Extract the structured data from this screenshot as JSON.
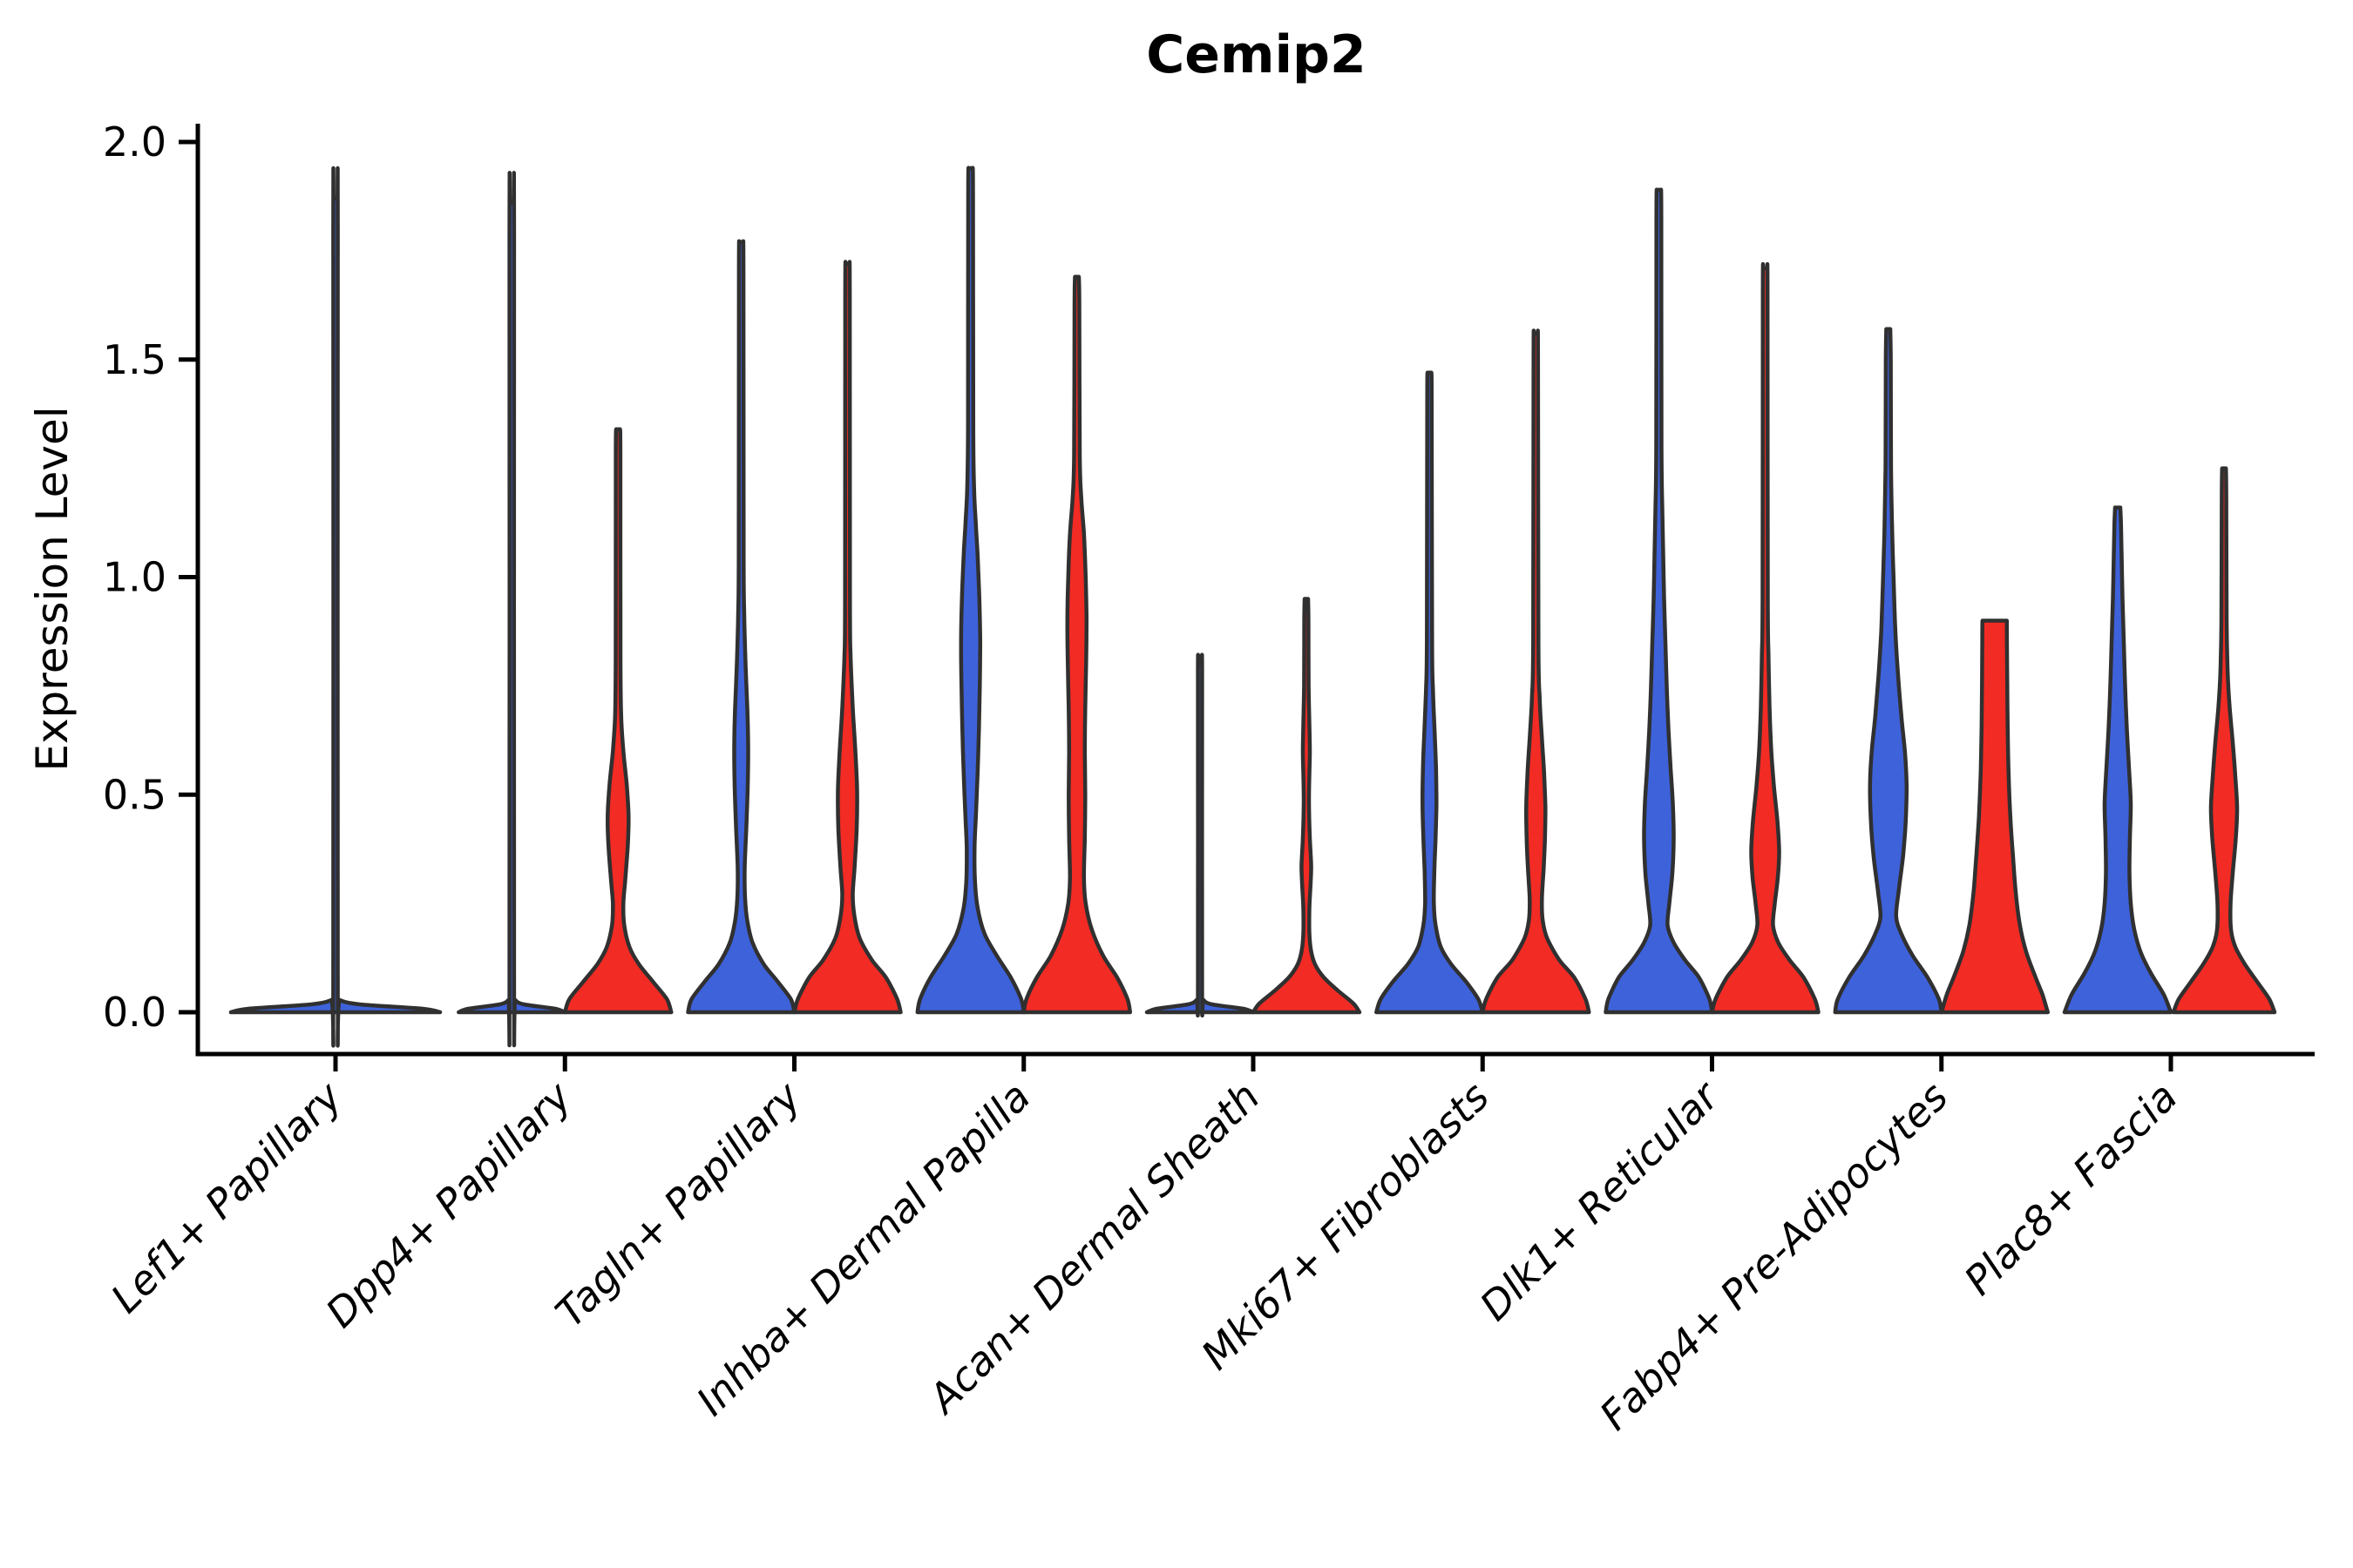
{
  "chart_data": {
    "type": "violin",
    "title": "Cemip2",
    "ylabel": "Expression Level",
    "xlabel": "",
    "ylim": [
      0,
      2.05
    ],
    "grid": false,
    "legend": "none",
    "yticks": [
      "0.0",
      "0.5",
      "1.0",
      "1.5",
      "2.0"
    ],
    "ytick_values": [
      0,
      0.5,
      1.0,
      1.5,
      2.0
    ],
    "categories": [
      "Lef1+ Papillary",
      "Dpp4+ Papillary",
      "Tagln+ Papillary",
      "Inhba+ Dermal Papilla",
      "Acan+ Dermal Sheath",
      "Mki67+ Fibroblasts",
      "Dlk1+ Reticular",
      "Fabp4+ Pre-Adipocytes",
      "Plac8+ Fascia"
    ],
    "colors": {
      "blue_series": "#3E62DA",
      "red_series": "#F22B24",
      "edge": "#303030",
      "axis": "#000000"
    },
    "violins": [
      {
        "category": 0,
        "position": "center",
        "series": "blue",
        "peak_value": 1.87,
        "truncated": false,
        "profile": [
          [
            0,
            120
          ],
          [
            0.008,
            100
          ],
          [
            0.018,
            28
          ],
          [
            0.028,
            5
          ],
          [
            0.045,
            2.6
          ],
          [
            1.8,
            2.6
          ],
          [
            1.87,
            2.3
          ]
        ]
      },
      {
        "category": 1,
        "position": "left",
        "series": "blue",
        "peak_value": 1.86,
        "truncated": false,
        "profile": [
          [
            0,
            61
          ],
          [
            0.008,
            50
          ],
          [
            0.018,
            14
          ],
          [
            0.028,
            4
          ],
          [
            0.045,
            2.6
          ],
          [
            1.79,
            2.6
          ],
          [
            1.86,
            2.3
          ]
        ]
      },
      {
        "category": 1,
        "position": "right",
        "series": "red",
        "peak_value": 1.34,
        "truncated": false,
        "profile": [
          [
            0,
            61
          ],
          [
            0.03,
            56
          ],
          [
            0.07,
            40
          ],
          [
            0.11,
            24
          ],
          [
            0.15,
            13
          ],
          [
            0.2,
            7
          ],
          [
            0.25,
            6
          ],
          [
            0.3,
            8
          ],
          [
            0.38,
            11
          ],
          [
            0.45,
            12
          ],
          [
            0.52,
            10
          ],
          [
            0.6,
            6
          ],
          [
            0.68,
            3.5
          ],
          [
            0.8,
            2.8
          ],
          [
            1.28,
            2.6
          ],
          [
            1.34,
            2.2
          ]
        ]
      },
      {
        "category": 2,
        "position": "left",
        "series": "blue",
        "peak_value": 1.77,
        "truncated": false,
        "profile": [
          [
            0,
            61
          ],
          [
            0.03,
            57
          ],
          [
            0.07,
            42
          ],
          [
            0.11,
            26
          ],
          [
            0.16,
            13
          ],
          [
            0.21,
            7
          ],
          [
            0.26,
            4.5
          ],
          [
            0.33,
            4
          ],
          [
            0.43,
            6
          ],
          [
            0.52,
            7.5
          ],
          [
            0.61,
            8
          ],
          [
            0.7,
            7
          ],
          [
            0.8,
            5
          ],
          [
            0.91,
            3.5
          ],
          [
            1.05,
            2.8
          ],
          [
            1.7,
            2.6
          ],
          [
            1.77,
            2.3
          ]
        ]
      },
      {
        "category": 2,
        "position": "right",
        "series": "red",
        "peak_value": 1.72,
        "truncated": false,
        "profile": [
          [
            0,
            61
          ],
          [
            0.03,
            57
          ],
          [
            0.08,
            44
          ],
          [
            0.12,
            28
          ],
          [
            0.17,
            14
          ],
          [
            0.22,
            8
          ],
          [
            0.27,
            6
          ],
          [
            0.33,
            8
          ],
          [
            0.42,
            10.5
          ],
          [
            0.51,
            11
          ],
          [
            0.6,
            9
          ],
          [
            0.7,
            6
          ],
          [
            0.82,
            3.5
          ],
          [
            0.95,
            2.8
          ],
          [
            1.65,
            2.6
          ],
          [
            1.72,
            2.3
          ]
        ]
      },
      {
        "category": 3,
        "position": "left",
        "series": "blue",
        "peak_value": 1.94,
        "truncated": false,
        "profile": [
          [
            0,
            61
          ],
          [
            0.03,
            58
          ],
          [
            0.08,
            46
          ],
          [
            0.13,
            30
          ],
          [
            0.18,
            16
          ],
          [
            0.24,
            8
          ],
          [
            0.3,
            5
          ],
          [
            0.38,
            4.5
          ],
          [
            0.45,
            6
          ],
          [
            0.55,
            8
          ],
          [
            0.65,
            9.5
          ],
          [
            0.75,
            10.5
          ],
          [
            0.85,
            11
          ],
          [
            0.95,
            10
          ],
          [
            1.05,
            8
          ],
          [
            1.12,
            6
          ],
          [
            1.2,
            4
          ],
          [
            1.35,
            3
          ],
          [
            1.88,
            2.8
          ],
          [
            1.94,
            2.3
          ]
        ]
      },
      {
        "category": 3,
        "position": "right",
        "series": "red",
        "peak_value": 1.69,
        "truncated": false,
        "profile": [
          [
            0,
            61
          ],
          [
            0.03,
            58
          ],
          [
            0.08,
            46
          ],
          [
            0.13,
            30
          ],
          [
            0.19,
            17
          ],
          [
            0.25,
            10
          ],
          [
            0.31,
            8
          ],
          [
            0.4,
            9
          ],
          [
            0.5,
            9.5
          ],
          [
            0.6,
            9
          ],
          [
            0.7,
            9.5
          ],
          [
            0.8,
            10.5
          ],
          [
            0.9,
            11
          ],
          [
            1.0,
            10
          ],
          [
            1.1,
            8
          ],
          [
            1.18,
            5
          ],
          [
            1.28,
            3.2
          ],
          [
            1.62,
            2.8
          ],
          [
            1.69,
            2.3
          ]
        ]
      },
      {
        "category": 4,
        "position": "left",
        "series": "blue",
        "peak_value": 0.8,
        "truncated": false,
        "profile": [
          [
            0,
            61
          ],
          [
            0.008,
            50
          ],
          [
            0.018,
            14
          ],
          [
            0.028,
            4
          ],
          [
            0.045,
            2.4
          ],
          [
            0.76,
            2.4
          ],
          [
            0.8,
            2.1
          ]
        ]
      },
      {
        "category": 4,
        "position": "right",
        "series": "red",
        "peak_value": 0.95,
        "truncated": false,
        "profile": [
          [
            0,
            61
          ],
          [
            0.02,
            54
          ],
          [
            0.05,
            36
          ],
          [
            0.08,
            20
          ],
          [
            0.11,
            10
          ],
          [
            0.14,
            5.5
          ],
          [
            0.18,
            3.5
          ],
          [
            0.24,
            3.5
          ],
          [
            0.3,
            5
          ],
          [
            0.34,
            5.5
          ],
          [
            0.4,
            4
          ],
          [
            0.48,
            3
          ],
          [
            0.55,
            3.5
          ],
          [
            0.6,
            4
          ],
          [
            0.66,
            3.5
          ],
          [
            0.75,
            2.6
          ],
          [
            0.9,
            2.4
          ],
          [
            0.95,
            2.0
          ]
        ]
      },
      {
        "category": 5,
        "position": "left",
        "series": "blue",
        "peak_value": 1.47,
        "truncated": false,
        "profile": [
          [
            0,
            61
          ],
          [
            0.03,
            56
          ],
          [
            0.07,
            42
          ],
          [
            0.11,
            25
          ],
          [
            0.15,
            13
          ],
          [
            0.2,
            7
          ],
          [
            0.25,
            5
          ],
          [
            0.32,
            5.5
          ],
          [
            0.4,
            7
          ],
          [
            0.48,
            8
          ],
          [
            0.56,
            7.5
          ],
          [
            0.64,
            6
          ],
          [
            0.74,
            4
          ],
          [
            0.85,
            3
          ],
          [
            1.4,
            2.6
          ],
          [
            1.47,
            2.3
          ]
        ]
      },
      {
        "category": 5,
        "position": "right",
        "series": "red",
        "peak_value": 1.56,
        "truncated": false,
        "profile": [
          [
            0,
            61
          ],
          [
            0.03,
            57
          ],
          [
            0.08,
            44
          ],
          [
            0.12,
            27
          ],
          [
            0.17,
            13
          ],
          [
            0.21,
            8
          ],
          [
            0.26,
            7
          ],
          [
            0.33,
            9
          ],
          [
            0.4,
            10.5
          ],
          [
            0.47,
            11
          ],
          [
            0.55,
            9.5
          ],
          [
            0.63,
            7
          ],
          [
            0.72,
            4.5
          ],
          [
            0.85,
            3
          ],
          [
            1.5,
            2.6
          ],
          [
            1.56,
            2.3
          ]
        ]
      },
      {
        "category": 6,
        "position": "left",
        "series": "blue",
        "peak_value": 1.89,
        "truncated": false,
        "profile": [
          [
            0,
            61
          ],
          [
            0.03,
            58
          ],
          [
            0.08,
            46
          ],
          [
            0.12,
            30
          ],
          [
            0.16,
            17
          ],
          [
            0.2,
            10
          ],
          [
            0.25,
            12
          ],
          [
            0.32,
            15.5
          ],
          [
            0.4,
            17
          ],
          [
            0.48,
            16
          ],
          [
            0.56,
            13.5
          ],
          [
            0.65,
            11
          ],
          [
            0.75,
            9
          ],
          [
            0.85,
            7.5
          ],
          [
            0.95,
            6
          ],
          [
            1.05,
            5
          ],
          [
            1.15,
            4
          ],
          [
            1.3,
            3
          ],
          [
            1.83,
            2.8
          ],
          [
            1.89,
            2.3
          ]
        ]
      },
      {
        "category": 6,
        "position": "right",
        "series": "red",
        "peak_value": 1.71,
        "truncated": false,
        "profile": [
          [
            0,
            61
          ],
          [
            0.03,
            57
          ],
          [
            0.08,
            44
          ],
          [
            0.12,
            28
          ],
          [
            0.16,
            15
          ],
          [
            0.2,
            9
          ],
          [
            0.25,
            11
          ],
          [
            0.31,
            14.5
          ],
          [
            0.37,
            16
          ],
          [
            0.44,
            14
          ],
          [
            0.52,
            10
          ],
          [
            0.6,
            7
          ],
          [
            0.7,
            5
          ],
          [
            0.82,
            3.8
          ],
          [
            0.95,
            3
          ],
          [
            1.65,
            2.7
          ],
          [
            1.71,
            2.3
          ]
        ]
      },
      {
        "category": 7,
        "position": "left",
        "series": "blue",
        "peak_value": 1.57,
        "truncated": false,
        "profile": [
          [
            0,
            61
          ],
          [
            0.03,
            58
          ],
          [
            0.08,
            45
          ],
          [
            0.13,
            28
          ],
          [
            0.18,
            15
          ],
          [
            0.22,
            9
          ],
          [
            0.28,
            12
          ],
          [
            0.36,
            17
          ],
          [
            0.44,
            20
          ],
          [
            0.52,
            21
          ],
          [
            0.6,
            19
          ],
          [
            0.68,
            15
          ],
          [
            0.78,
            11
          ],
          [
            0.88,
            8
          ],
          [
            1.0,
            6
          ],
          [
            1.1,
            4.5
          ],
          [
            1.25,
            3.2
          ],
          [
            1.5,
            2.8
          ],
          [
            1.57,
            2.3
          ]
        ]
      },
      {
        "category": 7,
        "position": "right",
        "series": "red",
        "peak_value": 0.9,
        "truncated": true,
        "profile": [
          [
            0,
            61
          ],
          [
            0.04,
            55
          ],
          [
            0.08,
            47
          ],
          [
            0.14,
            36
          ],
          [
            0.2,
            29
          ],
          [
            0.28,
            24
          ],
          [
            0.36,
            21
          ],
          [
            0.45,
            18
          ],
          [
            0.55,
            16
          ],
          [
            0.65,
            15
          ],
          [
            0.75,
            14.5
          ],
          [
            0.85,
            14.2
          ],
          [
            0.9,
            14
          ]
        ]
      },
      {
        "category": 8,
        "position": "left",
        "series": "blue",
        "peak_value": 1.16,
        "truncated": false,
        "profile": [
          [
            0,
            61
          ],
          [
            0.04,
            53
          ],
          [
            0.09,
            38
          ],
          [
            0.14,
            26
          ],
          [
            0.19,
            19
          ],
          [
            0.25,
            15
          ],
          [
            0.32,
            13.5
          ],
          [
            0.4,
            14
          ],
          [
            0.48,
            15
          ],
          [
            0.56,
            13
          ],
          [
            0.65,
            10.5
          ],
          [
            0.75,
            8.5
          ],
          [
            0.85,
            7
          ],
          [
            0.95,
            5.5
          ],
          [
            1.05,
            4.5
          ],
          [
            1.12,
            3.8
          ],
          [
            1.16,
            3
          ]
        ]
      },
      {
        "category": 8,
        "position": "right",
        "series": "red",
        "peak_value": 1.25,
        "truncated": false,
        "profile": [
          [
            0,
            58
          ],
          [
            0.03,
            52
          ],
          [
            0.07,
            38
          ],
          [
            0.11,
            24
          ],
          [
            0.15,
            13
          ],
          [
            0.19,
            8
          ],
          [
            0.25,
            7.5
          ],
          [
            0.32,
            10
          ],
          [
            0.4,
            13.5
          ],
          [
            0.47,
            15
          ],
          [
            0.54,
            13
          ],
          [
            0.62,
            10
          ],
          [
            0.7,
            6.5
          ],
          [
            0.78,
            4.2
          ],
          [
            0.9,
            3
          ],
          [
            1.18,
            2.6
          ],
          [
            1.25,
            2.2
          ]
        ]
      }
    ]
  }
}
